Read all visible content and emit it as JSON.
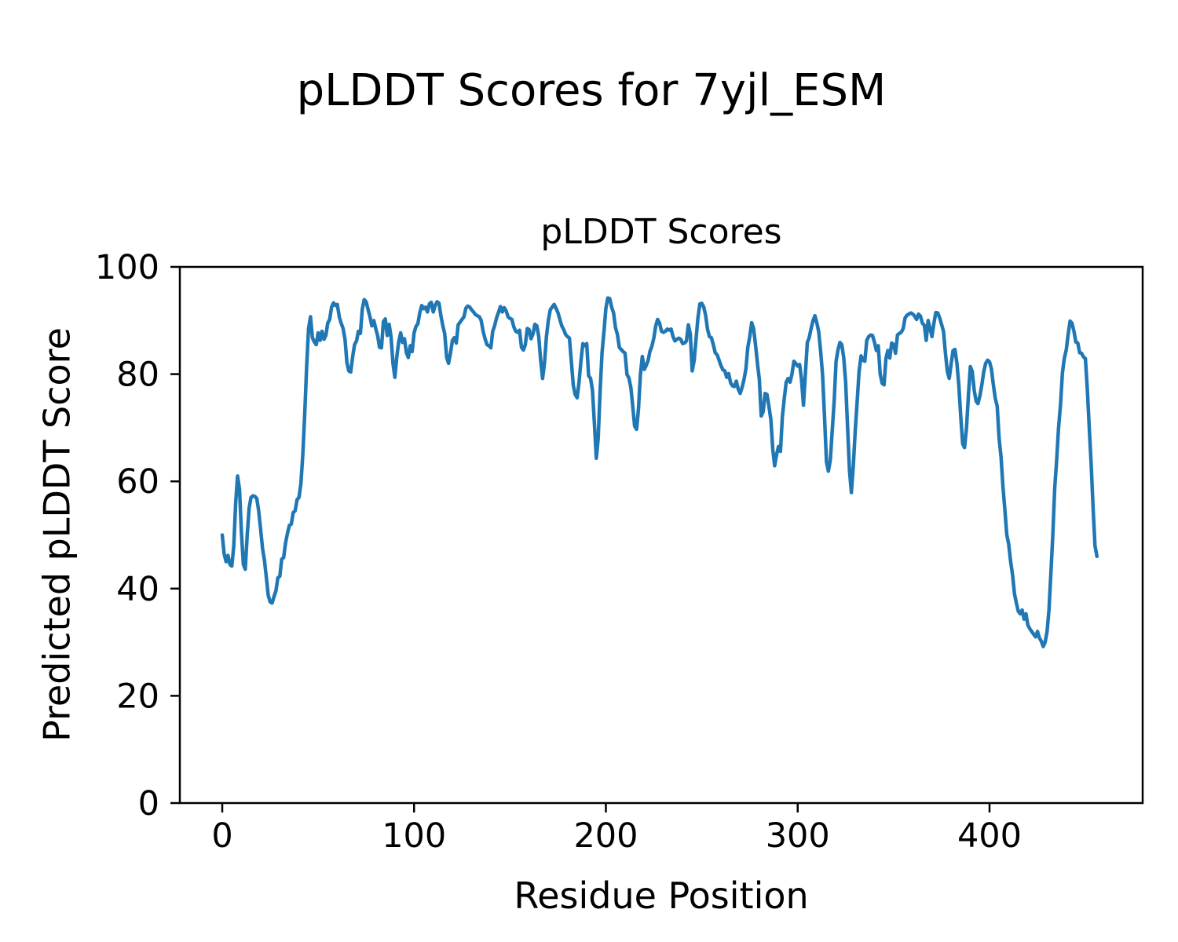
{
  "figure": {
    "suptitle": "pLDDT Scores for 7yjl_ESM"
  },
  "chart_data": {
    "type": "line",
    "title": "pLDDT Scores",
    "xlabel": "Residue Position",
    "ylabel": "Predicted pLDDT Score",
    "xticks": [
      0,
      100,
      200,
      300,
      400
    ],
    "yticks": [
      0,
      20,
      40,
      60,
      80,
      100
    ],
    "ylim": [
      0,
      100
    ],
    "xlim_data": [
      0,
      456
    ],
    "grid": false,
    "legend": "none",
    "line_color": "#1f77b4",
    "axis_color": "#000000",
    "series": [
      {
        "name": "pLDDT",
        "x_start": 0,
        "x_step": 1,
        "values": [
          50,
          46.5,
          45,
          46.2,
          44.5,
          44.2,
          48,
          56,
          61,
          58.5,
          50.5,
          44.5,
          43.6,
          50,
          55,
          57,
          57.3,
          57.2,
          56.8,
          54.5,
          51,
          47.5,
          45.3,
          42,
          38.7,
          37.5,
          37.3,
          38.5,
          39.6,
          42,
          42.3,
          45.5,
          45.8,
          48.5,
          50.3,
          51.8,
          52,
          54.2,
          54.5,
          56.6,
          57,
          59.5,
          65,
          72.5,
          81.5,
          88.5,
          90.7,
          86.8,
          86,
          85.5,
          87.7,
          86.3,
          88,
          86.5,
          87.2,
          89.5,
          90.2,
          92.5,
          93.3,
          92.8,
          93,
          90.7,
          89.5,
          88.5,
          86.5,
          82.1,
          80.6,
          80.4,
          83.3,
          85.5,
          86.2,
          88,
          87.6,
          92.1,
          93.9,
          93.5,
          92.1,
          90.7,
          89,
          90,
          88.5,
          87.2,
          85,
          84.9,
          89.8,
          90.3,
          87.2,
          89.3,
          87,
          82,
          79.4,
          83.3,
          86,
          87.7,
          85.9,
          86.6,
          84,
          83.1,
          85.3,
          84.2,
          87.7,
          88.9,
          89.4,
          91.5,
          92.8,
          92.2,
          92.5,
          91.6,
          93.1,
          93.4,
          91.6,
          92.8,
          93.5,
          93.2,
          90.9,
          89,
          87.5,
          83.1,
          82,
          84,
          86.3,
          86.8,
          85.8,
          89.2,
          89.7,
          90.2,
          90.7,
          92.3,
          92.7,
          92.5,
          92,
          91.6,
          91.1,
          90.9,
          90.7,
          90,
          88,
          86.6,
          85.5,
          85.3,
          84.9,
          88,
          89,
          90.5,
          91.5,
          92.6,
          91.6,
          92.4,
          91.8,
          90.7,
          90.4,
          90.2,
          88.8,
          88,
          87.8,
          88.2,
          85,
          84.5,
          85.5,
          88.5,
          88.3,
          86.6,
          87.5,
          89.3,
          89,
          87,
          82.5,
          79.2,
          82,
          87,
          90,
          92,
          92.5,
          93,
          92.3,
          91.5,
          90.2,
          89,
          88.3,
          87.4,
          87,
          86.7,
          82.4,
          77.9,
          76.2,
          75.6,
          78.5,
          82.4,
          85.7,
          85.3,
          85.7,
          79.7,
          79.2,
          77,
          71,
          64.3,
          68,
          77,
          84,
          88,
          92.3,
          94.2,
          94.1,
          92.5,
          91.4,
          88.7,
          87.4,
          85,
          84.6,
          84.2,
          83.9,
          79.9,
          79.3,
          77.5,
          74,
          70.3,
          69.7,
          73.5,
          80,
          83.3,
          80.9,
          81.6,
          82.5,
          84.3,
          85.2,
          86.8,
          89,
          90.2,
          89.5,
          88,
          87.8,
          88,
          88.4,
          88.2,
          88.4,
          87,
          86.2,
          86.5,
          86.7,
          86.5,
          85.7,
          85.8,
          86.2,
          89.2,
          87.5,
          80.6,
          82.5,
          86.5,
          90.5,
          93.1,
          93.2,
          92.5,
          91,
          88.3,
          87,
          86.8,
          85.5,
          84,
          83.6,
          82.6,
          81.6,
          80.8,
          80.6,
          79.4,
          80.1,
          78.4,
          77.8,
          77.7,
          78.7,
          77.2,
          76.4,
          77.5,
          79,
          81,
          85,
          87,
          89.6,
          88.5,
          85.5,
          82,
          79,
          72.2,
          73,
          76.4,
          76.2,
          74,
          71.5,
          66,
          62.9,
          65,
          66.5,
          65.6,
          72,
          75.5,
          78.5,
          79.2,
          78.5,
          80,
          82.4,
          82,
          81.5,
          81.8,
          79,
          74.2,
          80,
          85.9,
          86.8,
          88.5,
          90,
          90.9,
          89.5,
          87.8,
          84,
          79.7,
          72,
          63.6,
          61.9,
          64,
          69.4,
          75,
          82.4,
          84.5,
          85.9,
          85.5,
          83,
          78.5,
          70,
          62,
          57.9,
          63,
          69.4,
          75,
          80.5,
          83.4,
          82.6,
          82.4,
          86.3,
          87,
          87.3,
          87.2,
          86,
          84.4,
          85.3,
          80,
          78.3,
          78,
          82.9,
          84.4,
          83,
          85.8,
          85.5,
          83.9,
          87.3,
          87.6,
          87.8,
          88.5,
          90.5,
          91,
          91.2,
          91.4,
          91.2,
          90.8,
          90.2,
          91.2,
          90.8,
          89.5,
          89.1,
          86.3,
          90,
          88.5,
          87,
          89.5,
          91.5,
          91.4,
          90.5,
          89.3,
          88,
          84,
          80.5,
          79.2,
          82,
          84.4,
          84.6,
          82,
          78,
          72,
          67,
          66.3,
          70,
          76,
          81.4,
          80.5,
          77,
          75,
          74.5,
          76,
          78,
          80.5,
          82,
          82.6,
          82.3,
          81,
          78,
          75.5,
          74,
          68,
          64.5,
          59,
          54.8,
          50,
          48.3,
          45,
          42.6,
          39,
          37.3,
          35.8,
          35.3,
          36,
          34.3,
          35.3,
          33.2,
          32.5,
          32,
          31.5,
          31,
          32,
          30.8,
          30.2,
          29.2,
          30,
          32,
          36,
          43,
          50,
          58.7,
          64,
          70,
          74.3,
          80.2,
          83,
          84.5,
          87.4,
          89.9,
          89.5,
          88,
          86,
          85.8,
          84,
          83.9,
          83.2,
          82.9,
          77,
          70,
          63,
          55,
          48,
          46
        ]
      }
    ]
  }
}
